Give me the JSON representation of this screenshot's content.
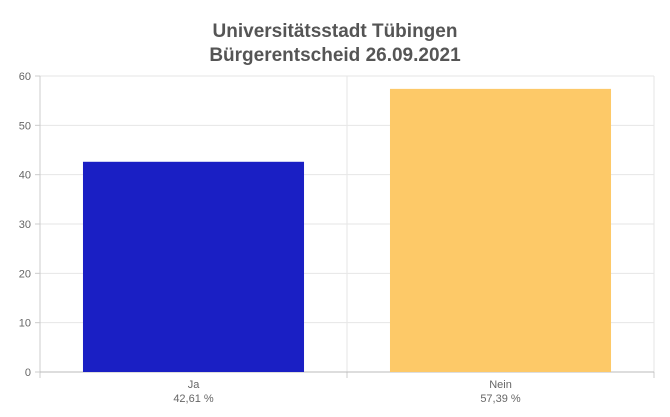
{
  "chart_data": {
    "type": "bar",
    "title": "Universitätsstadt Tübingen",
    "subtitle": "Bürgerentscheid 26.09.2021",
    "categories": [
      "Ja",
      "Nein"
    ],
    "category_sublabels": [
      "42,61 %",
      "57,39 %"
    ],
    "values": [
      42.61,
      57.39
    ],
    "colors": [
      "#1a1fc4",
      "#fdc968"
    ],
    "ylim": [
      0,
      60
    ],
    "yticks": [
      0,
      10,
      20,
      30,
      40,
      50,
      60
    ],
    "xlabel": "",
    "ylabel": "",
    "grid": true,
    "legend": "none"
  }
}
